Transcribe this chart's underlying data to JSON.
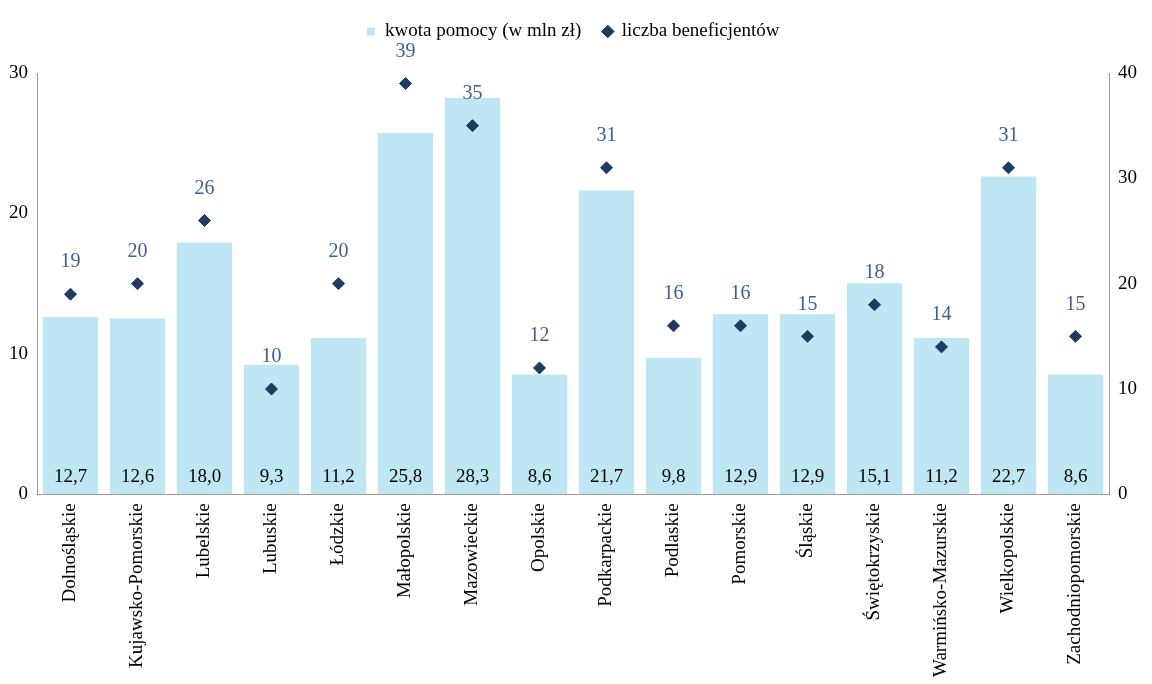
{
  "chart_data": {
    "type": "bar",
    "categories": [
      "Dolnośląskie",
      "Kujawsko-Pomorskie",
      "Lubelskie",
      "Lubuskie",
      "Łódzkie",
      "Małopolskie",
      "Mazowieckie",
      "Opolskie",
      "Podkarpackie",
      "Podlaskie",
      "Pomorskie",
      "Śląskie",
      "Świętokrzyskie",
      "Warmińsko-Mazurskie",
      "Wielkopolskie",
      "Zachodniopomorskie"
    ],
    "series": [
      {
        "name": "kwota pomocy (w mln zł)",
        "color": "#bfe7f3",
        "values": [
          12.7,
          12.6,
          18.0,
          9.3,
          11.2,
          25.8,
          28.3,
          8.6,
          21.7,
          9.8,
          12.9,
          12.9,
          15.1,
          11.2,
          22.7,
          8.6
        ],
        "value_labels": [
          "12,7",
          "12,6",
          "18,0",
          "9,3",
          "11,2",
          "25,8",
          "28,3",
          "8,6",
          "21,7",
          "9,8",
          "12,9",
          "12,9",
          "15,1",
          "11,2",
          "22,7",
          "8,6"
        ]
      },
      {
        "name": "liczba beneficjentów",
        "type": "scatter",
        "axis": "y2",
        "marker": "diamond",
        "color": "#1f3a63",
        "x": [
          "Dolnośląskie",
          "Kujawsko-Pomorskie",
          "Lubelskie",
          "Lubuskie",
          "Łódzkie",
          "Małopolskie",
          "Mazowieckie",
          "Opolskie",
          "Podkarpackie",
          "Podlaskie",
          "Pomorskie",
          "Śląskie",
          "Świętokrzyskie",
          "Warmińsko-Mazurskie",
          "Wielkopolskie",
          "Zachodniopomorskie"
        ],
        "values": [
          19,
          20,
          26,
          10,
          20,
          39,
          35,
          12,
          31,
          16,
          16,
          15,
          18,
          14,
          31,
          15
        ],
        "value_labels": [
          "19",
          "20",
          "26",
          "10",
          "20",
          "39",
          "35",
          "12",
          "31",
          "16",
          "16",
          "15",
          "18",
          "14",
          "31",
          "15"
        ]
      }
    ],
    "ylim": [
      0,
      30
    ],
    "yticks": [
      0,
      10,
      20,
      30
    ],
    "y2lim": [
      0,
      40
    ],
    "y2ticks": [
      0,
      10,
      20,
      30,
      40
    ],
    "grid": false,
    "legend": "top"
  }
}
